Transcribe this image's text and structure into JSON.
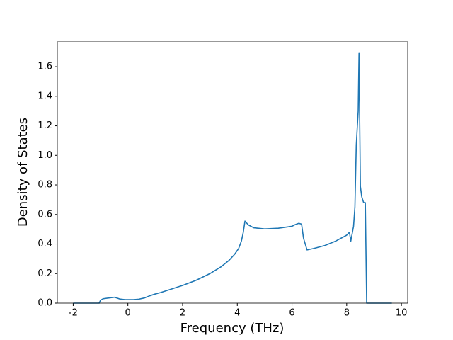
{
  "chart_data": {
    "type": "line",
    "xlabel": "Frequency (THz)",
    "ylabel": "Density of States",
    "xlim": [
      -2.58,
      10.23
    ],
    "ylim": [
      0,
      1.768
    ],
    "xticks": [
      -2,
      0,
      2,
      4,
      6,
      8,
      10
    ],
    "yticks": [
      {
        "value": 0,
        "label": "0.0"
      },
      0.2,
      0.4,
      0.6,
      0.8,
      {
        "value": 1,
        "label": "1.0"
      },
      1.2,
      1.4,
      1.6
    ],
    "grid": false,
    "series": [
      {
        "color": "#1f77b4",
        "x": [
          -2,
          -1.05,
          -1.0,
          -0.9,
          -0.7,
          -0.5,
          -0.4,
          -0.3,
          -0.1,
          0.2,
          0.4,
          0.6,
          0.8,
          1.0,
          1.2,
          1.5,
          2.0,
          2.5,
          3.0,
          3.4,
          3.7,
          3.9,
          4.05,
          4.15,
          4.22,
          4.28,
          4.4,
          4.6,
          5.0,
          5.5,
          6.0,
          6.1,
          6.25,
          6.35,
          6.42,
          6.55,
          6.8,
          7.2,
          7.6,
          8.0,
          8.1,
          8.15,
          8.25,
          8.3,
          8.35,
          8.42,
          8.45,
          8.5,
          8.55,
          8.62,
          8.68,
          8.73,
          9.65
        ],
        "values": [
          0,
          0,
          0.02,
          0.03,
          0.035,
          0.04,
          0.035,
          0.028,
          0.024,
          0.024,
          0.027,
          0.035,
          0.05,
          0.062,
          0.072,
          0.09,
          0.12,
          0.155,
          0.2,
          0.245,
          0.29,
          0.33,
          0.37,
          0.42,
          0.48,
          0.555,
          0.53,
          0.51,
          0.502,
          0.507,
          0.52,
          0.53,
          0.54,
          0.535,
          0.44,
          0.36,
          0.37,
          0.39,
          0.42,
          0.46,
          0.48,
          0.42,
          0.52,
          0.65,
          1.07,
          1.3,
          1.69,
          0.79,
          0.72,
          0.68,
          0.68,
          0,
          0
        ]
      }
    ]
  }
}
